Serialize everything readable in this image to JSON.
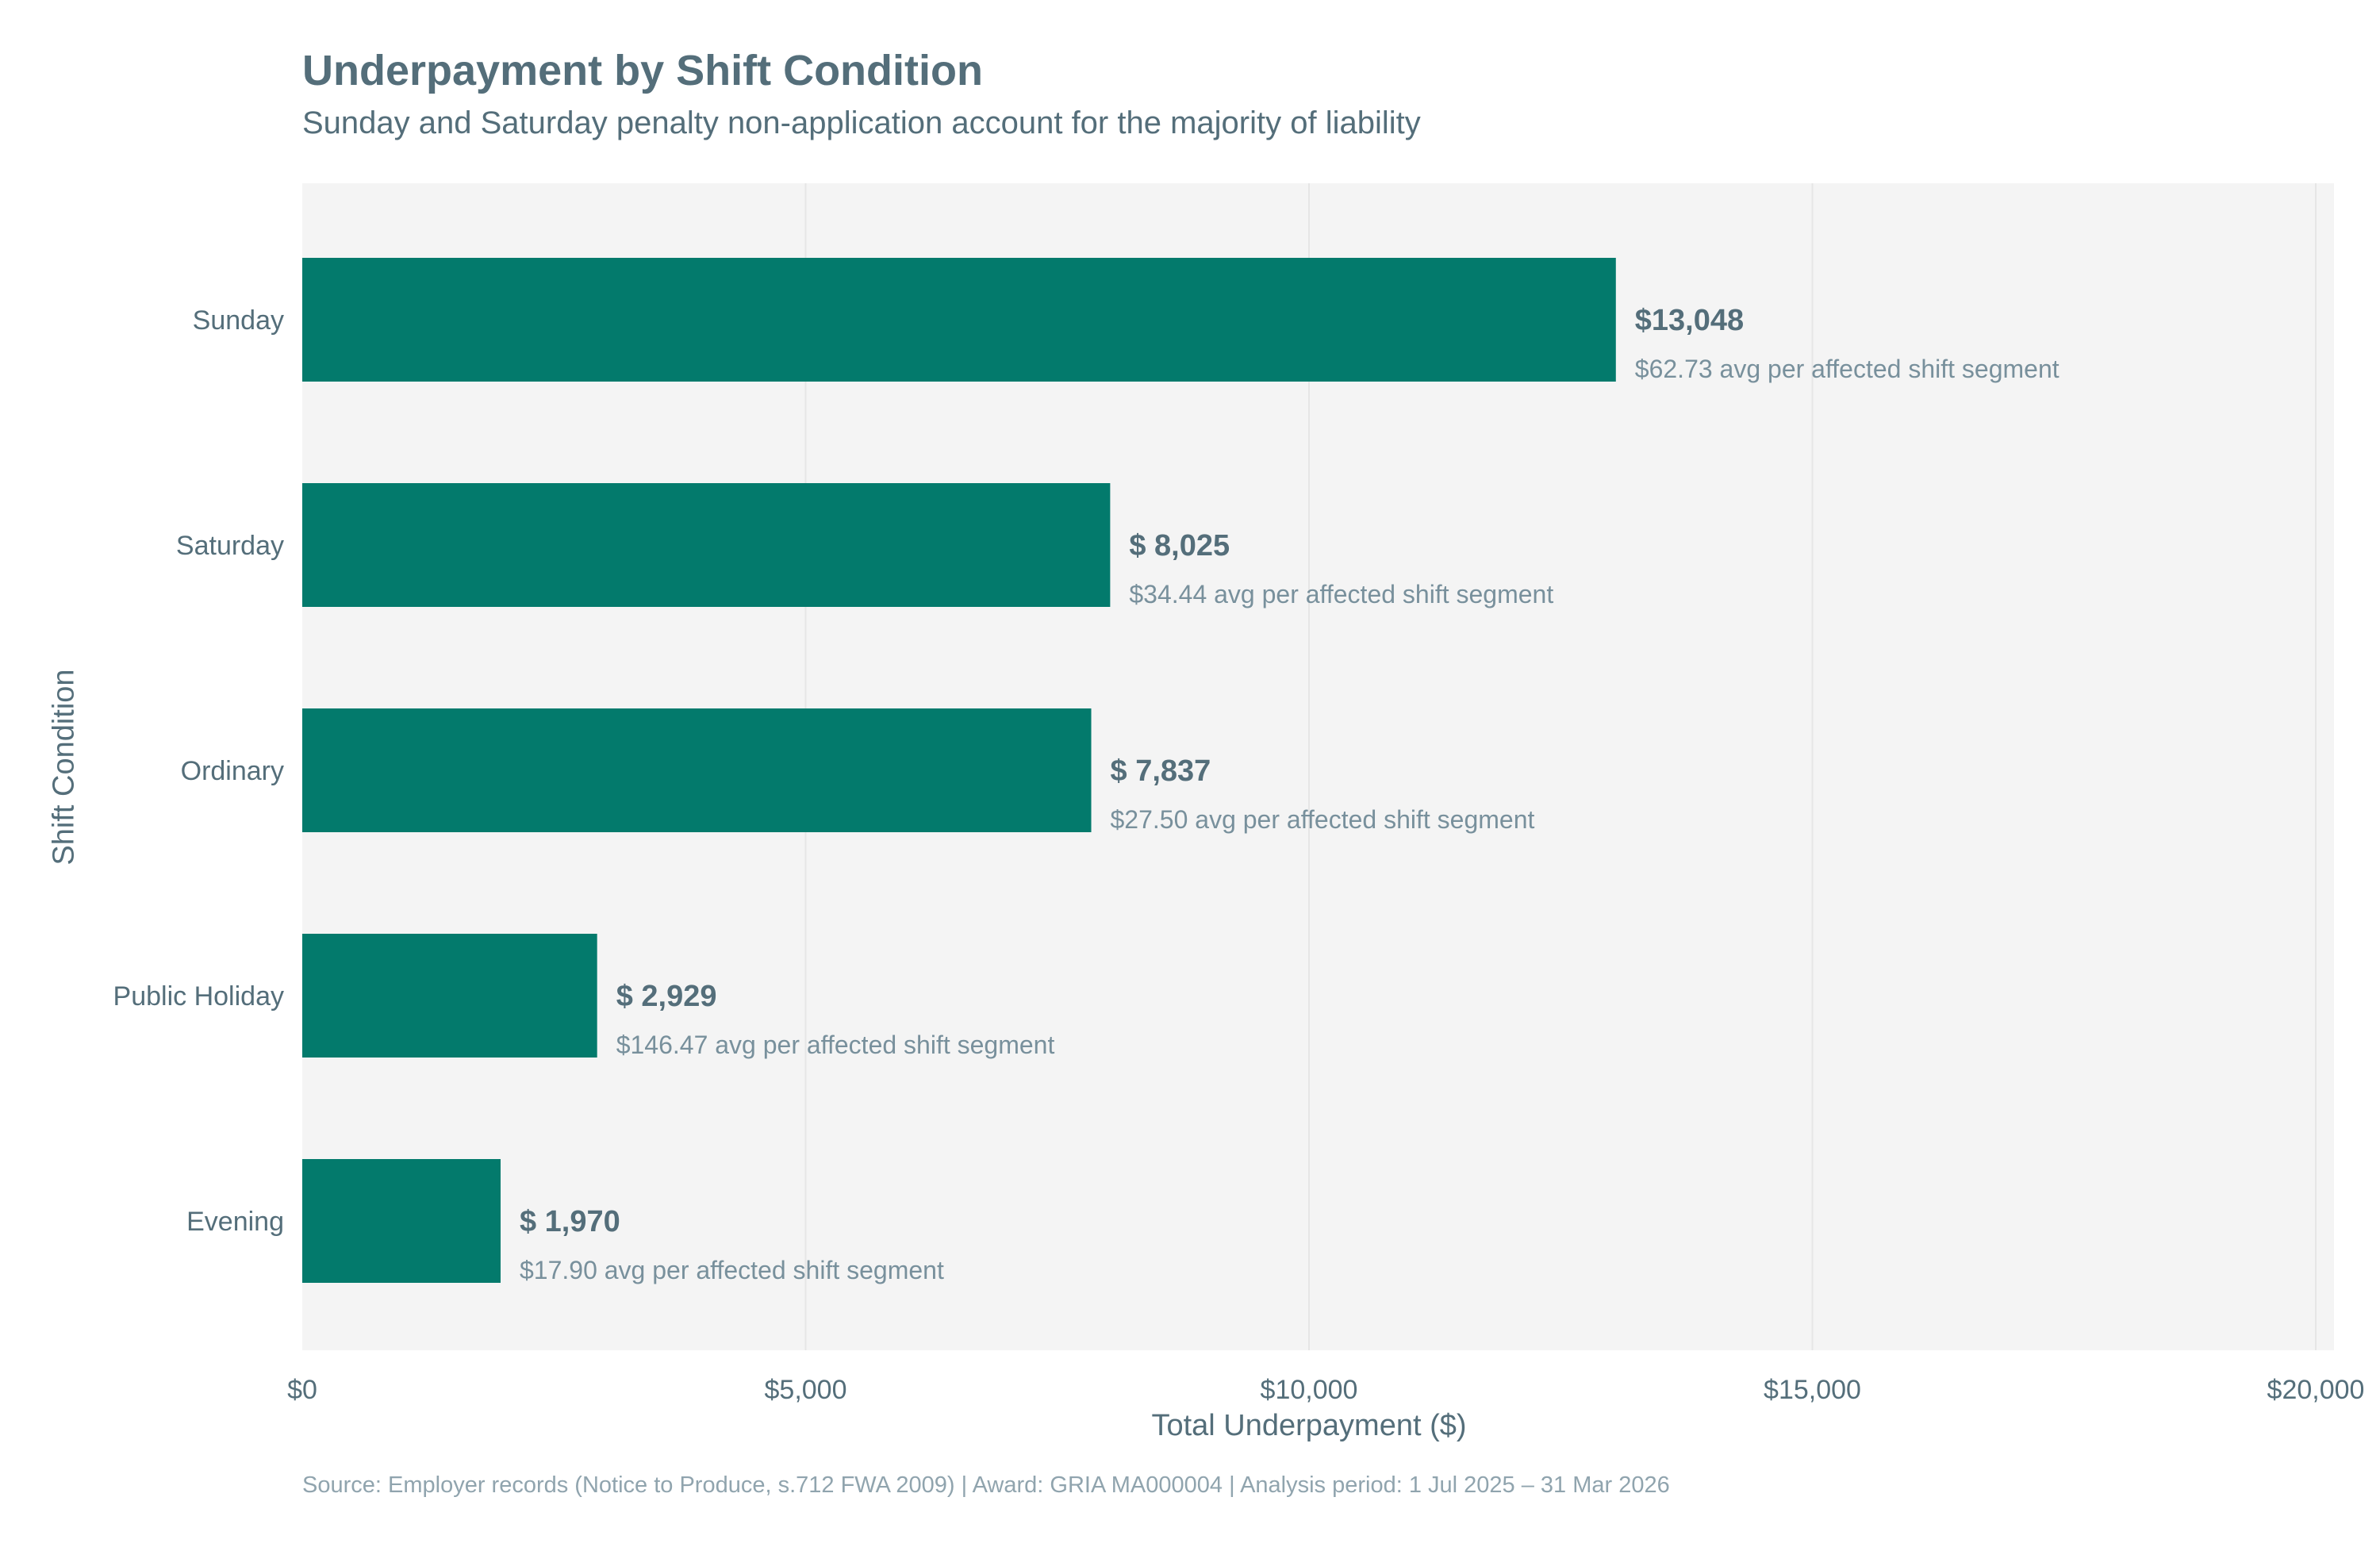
{
  "chart_data": {
    "type": "bar",
    "orientation": "horizontal",
    "title": "Underpayment by Shift Condition",
    "subtitle": "Sunday and Saturday penalty non-application account for the majority of liability",
    "xlabel": "Total Underpayment ($)",
    "ylabel": "Shift Condition",
    "xlim": [
      0,
      20000
    ],
    "xticks": [
      0,
      5000,
      10000,
      15000,
      20000
    ],
    "xtick_labels": [
      "$0",
      "$5,000",
      "$10,000",
      "$15,000",
      "$20,000"
    ],
    "grid": true,
    "categories": [
      "Sunday",
      "Saturday",
      "Ordinary",
      "Public Holiday",
      "Evening"
    ],
    "values": [
      13048,
      8025,
      7837,
      2929,
      1970
    ],
    "value_labels": [
      "$13,048",
      "$ 8,025",
      "$ 7,837",
      "$ 2,929",
      "$ 1,970"
    ],
    "annotations": [
      "$62.73 avg per affected shift segment",
      "$34.44 avg per affected shift segment",
      "$27.50 avg per affected shift segment",
      "$146.47 avg per affected shift segment",
      "$17.90 avg per affected shift segment"
    ],
    "source": "Source: Employer records (Notice to Produce, s.712 FWA 2009) | Award: GRIA MA000004 | Analysis period: 1 Jul 2025 – 31 Mar 2026",
    "colors": {
      "bar": "#037a6c",
      "text": "#546e7a",
      "muted_text": "#90a4ae",
      "plot_background": "#f4f4f4",
      "grid": "#e6e6e6"
    }
  }
}
